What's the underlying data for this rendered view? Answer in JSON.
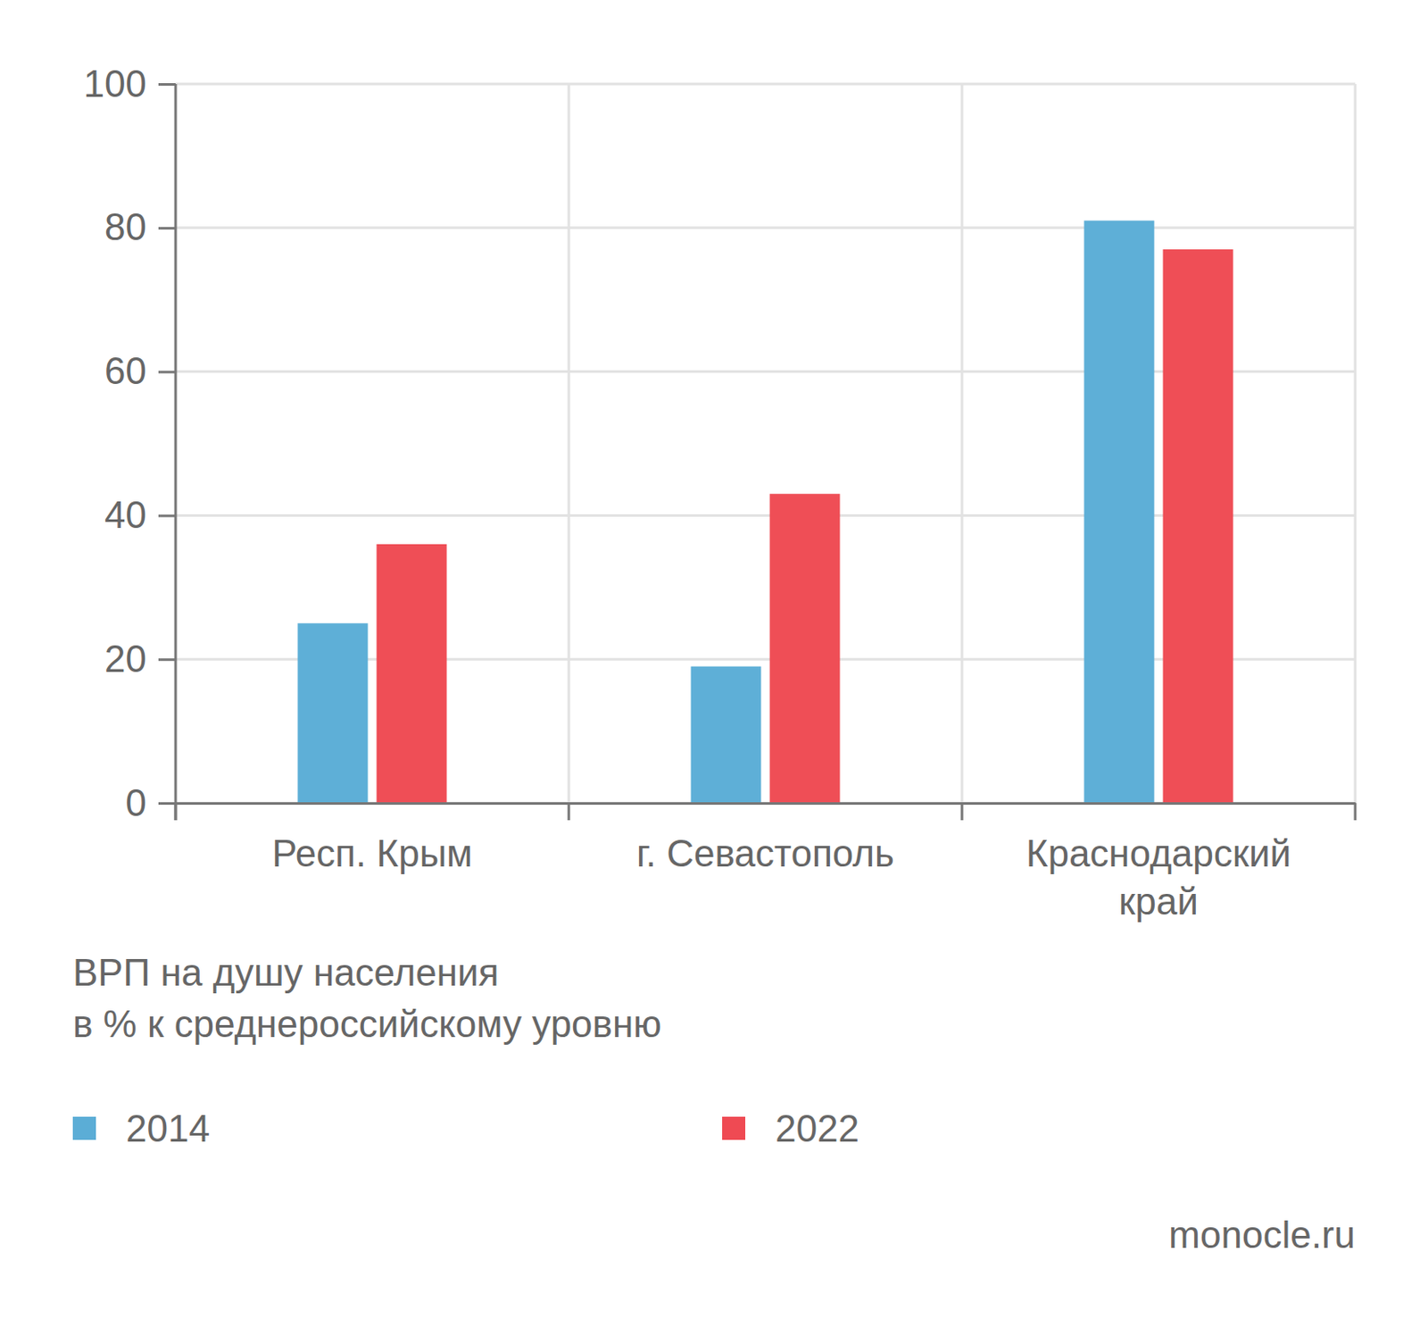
{
  "chart_data": {
    "type": "bar",
    "title": "ВРП на душу населения\nв % к среднероссийскому уровню",
    "categories": [
      "Респ. Крым",
      "г. Севастополь",
      "Краснодарский край"
    ],
    "series": [
      {
        "name": "2014",
        "color": "#5badd6",
        "values": [
          25,
          19,
          81
        ]
      },
      {
        "name": "2022",
        "color": "#ef4a53",
        "values": [
          36,
          43,
          77
        ]
      }
    ],
    "ylim": [
      0,
      100
    ],
    "yticks": [
      0,
      20,
      40,
      60,
      80,
      100
    ],
    "grid": true,
    "legend": "bottom",
    "annotations": [
      "monocle.ru"
    ]
  }
}
